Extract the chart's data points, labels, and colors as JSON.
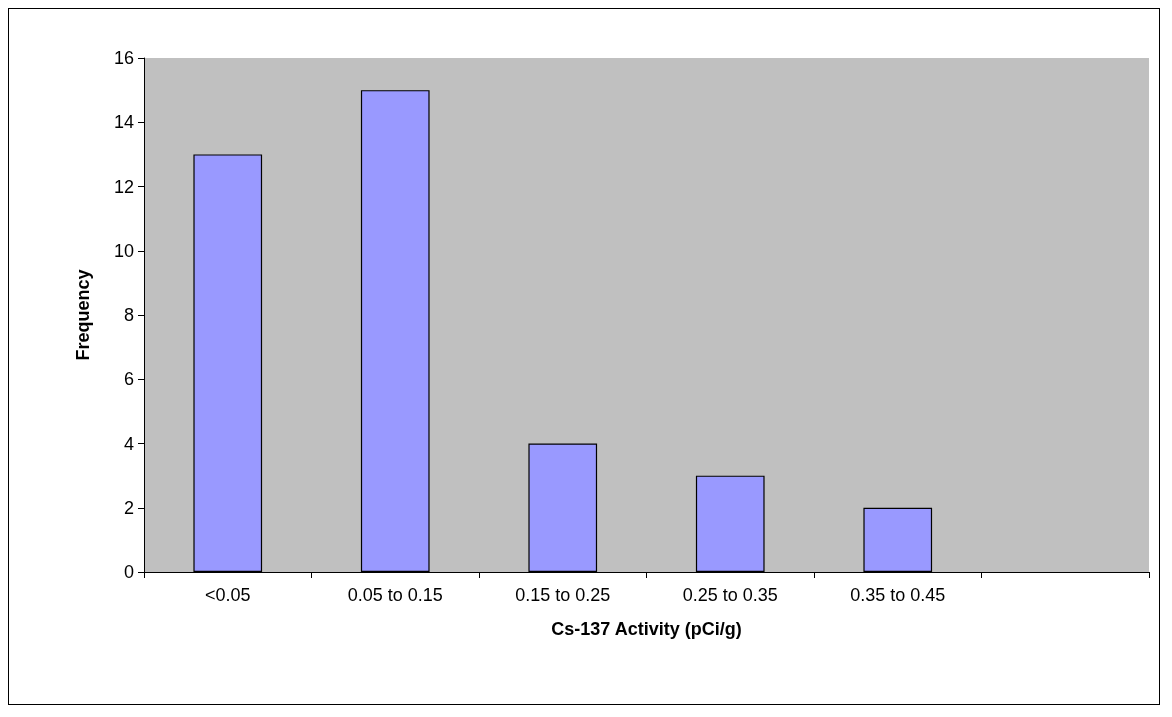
{
  "chart_data": {
    "type": "bar",
    "xlabel": "Cs-137 Activity (pCi/g)",
    "ylabel": "Frequency",
    "categories": [
      "<0.05",
      "0.05 to 0.15",
      "0.15 to 0.25",
      "0.25 to 0.35",
      "0.35 to 0.45",
      null
    ],
    "values": [
      13,
      15,
      4,
      3,
      2,
      null
    ],
    "color": "#9999ff",
    "ylim": [
      0,
      16
    ],
    "yticks": [
      0,
      2,
      4,
      6,
      8,
      10,
      12,
      14,
      16
    ],
    "grid": false
  }
}
